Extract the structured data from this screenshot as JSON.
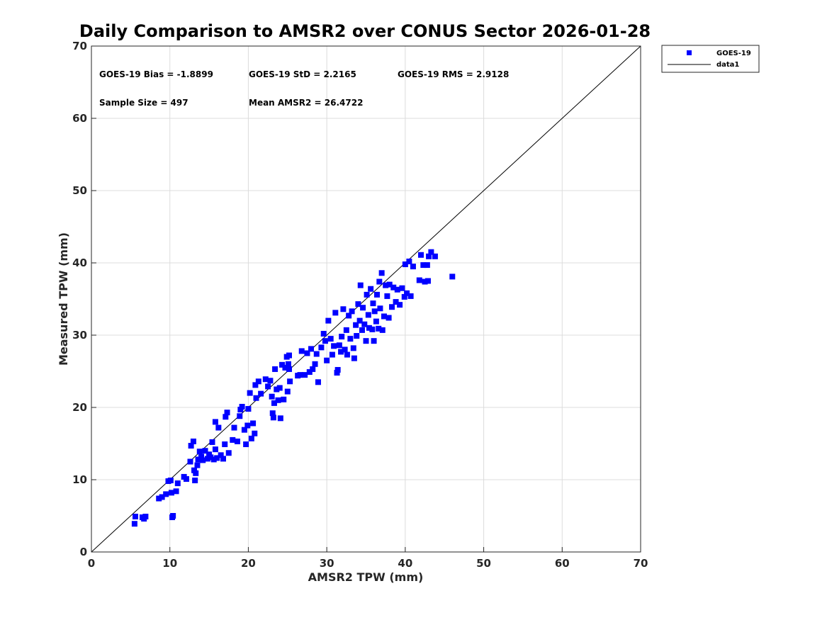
{
  "chart_data": {
    "type": "scatter",
    "title": "Daily Comparison to AMSR2 over CONUS Sector 2026-01-28",
    "xlabel": "AMSR2 TPW (mm)",
    "ylabel": "Measured TPW (mm)",
    "xlim": [
      0,
      70
    ],
    "ylim": [
      0,
      70
    ],
    "xticks": [
      "0",
      "10",
      "20",
      "30",
      "40",
      "50",
      "60",
      "70"
    ],
    "yticks": [
      "0",
      "10",
      "20",
      "30",
      "40",
      "50",
      "60",
      "70"
    ],
    "grid": true,
    "legend_position": "outside-top-right",
    "colors": {
      "marker": "#0000ff",
      "line": "#000000",
      "grid": "#dcdcdc"
    },
    "stats": {
      "bias": "GOES-19 Bias = -1.8899",
      "std": "GOES-19 StD = 2.2165",
      "rms": "GOES-19 RMS = 2.9128",
      "sample_size": "Sample Size = 497",
      "mean": "Mean AMSR2 = 26.4722"
    },
    "legend": [
      {
        "label": "GOES-19",
        "kind": "marker"
      },
      {
        "label": "data1",
        "kind": "line"
      }
    ],
    "reference_line": {
      "name": "data1",
      "x": [
        0,
        70
      ],
      "y": [
        0,
        70
      ]
    },
    "series": [
      {
        "name": "GOES-19",
        "points": [
          [
            5.5,
            3.9
          ],
          [
            5.6,
            4.9
          ],
          [
            6.5,
            4.8
          ],
          [
            6.9,
            4.9
          ],
          [
            6.7,
            4.6
          ],
          [
            8.6,
            7.4
          ],
          [
            9.0,
            7.6
          ],
          [
            9.5,
            8.0
          ],
          [
            9.8,
            9.8
          ],
          [
            10.1,
            9.9
          ],
          [
            10.2,
            8.2
          ],
          [
            10.8,
            8.4
          ],
          [
            10.3,
            4.8
          ],
          [
            10.4,
            5.0
          ],
          [
            11.0,
            9.5
          ],
          [
            11.8,
            10.4
          ],
          [
            12.1,
            10.1
          ],
          [
            12.6,
            12.5
          ],
          [
            12.7,
            14.7
          ],
          [
            13.0,
            15.3
          ],
          [
            13.1,
            11.3
          ],
          [
            13.2,
            9.9
          ],
          [
            13.3,
            10.9
          ],
          [
            13.5,
            12.0
          ],
          [
            13.6,
            12.8
          ],
          [
            13.8,
            13.9
          ],
          [
            14.0,
            13.2
          ],
          [
            14.2,
            12.7
          ],
          [
            14.5,
            14.0
          ],
          [
            14.8,
            12.9
          ],
          [
            15.0,
            13.5
          ],
          [
            15.2,
            13.1
          ],
          [
            15.4,
            15.2
          ],
          [
            15.6,
            12.8
          ],
          [
            15.8,
            14.2
          ],
          [
            16.0,
            13.0
          ],
          [
            15.8,
            18.0
          ],
          [
            16.2,
            17.2
          ],
          [
            16.5,
            13.4
          ],
          [
            16.8,
            12.9
          ],
          [
            17.0,
            14.9
          ],
          [
            17.1,
            18.7
          ],
          [
            17.3,
            19.3
          ],
          [
            17.5,
            13.7
          ],
          [
            18.0,
            15.5
          ],
          [
            18.2,
            17.2
          ],
          [
            18.6,
            15.3
          ],
          [
            18.9,
            18.8
          ],
          [
            19.0,
            19.7
          ],
          [
            19.2,
            20.1
          ],
          [
            19.5,
            16.9
          ],
          [
            19.7,
            14.9
          ],
          [
            19.9,
            17.5
          ],
          [
            20.0,
            19.8
          ],
          [
            20.2,
            22.0
          ],
          [
            20.4,
            15.7
          ],
          [
            20.6,
            17.8
          ],
          [
            20.8,
            16.4
          ],
          [
            20.9,
            23.1
          ],
          [
            21.0,
            21.3
          ],
          [
            21.3,
            23.6
          ],
          [
            21.6,
            21.9
          ],
          [
            22.2,
            23.9
          ],
          [
            22.5,
            22.9
          ],
          [
            22.8,
            23.7
          ],
          [
            23.0,
            21.5
          ],
          [
            23.1,
            19.2
          ],
          [
            23.2,
            18.6
          ],
          [
            23.3,
            20.6
          ],
          [
            23.4,
            25.3
          ],
          [
            23.6,
            22.5
          ],
          [
            23.8,
            21.0
          ],
          [
            24.0,
            22.7
          ],
          [
            24.1,
            18.5
          ],
          [
            24.3,
            25.9
          ],
          [
            24.5,
            21.1
          ],
          [
            24.7,
            25.5
          ],
          [
            24.9,
            27.0
          ],
          [
            25.1,
            26.0
          ],
          [
            25.2,
            25.3
          ],
          [
            25.3,
            23.6
          ],
          [
            25.0,
            22.2
          ],
          [
            25.2,
            27.2
          ],
          [
            26.3,
            24.4
          ],
          [
            26.6,
            24.5
          ],
          [
            26.8,
            27.8
          ],
          [
            27.2,
            24.5
          ],
          [
            27.5,
            27.5
          ],
          [
            27.8,
            24.9
          ],
          [
            28.0,
            28.1
          ],
          [
            28.2,
            25.3
          ],
          [
            28.5,
            26.0
          ],
          [
            28.7,
            27.4
          ],
          [
            28.9,
            23.5
          ],
          [
            29.3,
            28.3
          ],
          [
            29.6,
            30.2
          ],
          [
            29.8,
            29.2
          ],
          [
            30.0,
            26.5
          ],
          [
            30.2,
            32.0
          ],
          [
            30.5,
            29.5
          ],
          [
            30.7,
            27.3
          ],
          [
            30.9,
            28.5
          ],
          [
            31.1,
            33.1
          ],
          [
            31.3,
            24.8
          ],
          [
            31.4,
            25.2
          ],
          [
            31.6,
            28.6
          ],
          [
            31.8,
            27.7
          ],
          [
            31.9,
            29.8
          ],
          [
            32.1,
            33.6
          ],
          [
            32.3,
            28.0
          ],
          [
            32.5,
            30.7
          ],
          [
            32.6,
            27.3
          ],
          [
            32.8,
            32.7
          ],
          [
            33.0,
            29.5
          ],
          [
            33.2,
            33.3
          ],
          [
            33.4,
            28.2
          ],
          [
            33.5,
            26.8
          ],
          [
            33.7,
            31.4
          ],
          [
            33.8,
            29.9
          ],
          [
            34.0,
            34.3
          ],
          [
            34.2,
            32.0
          ],
          [
            34.3,
            36.9
          ],
          [
            34.5,
            30.7
          ],
          [
            34.6,
            33.8
          ],
          [
            34.8,
            31.5
          ],
          [
            35.0,
            29.2
          ],
          [
            35.1,
            35.6
          ],
          [
            35.3,
            32.8
          ],
          [
            35.4,
            31.0
          ],
          [
            35.6,
            36.4
          ],
          [
            35.8,
            30.8
          ],
          [
            35.9,
            34.4
          ],
          [
            36.0,
            29.2
          ],
          [
            36.1,
            33.3
          ],
          [
            36.3,
            31.9
          ],
          [
            36.4,
            35.6
          ],
          [
            36.6,
            30.9
          ],
          [
            36.7,
            37.4
          ],
          [
            36.8,
            33.7
          ],
          [
            37.0,
            38.6
          ],
          [
            37.1,
            30.7
          ],
          [
            37.3,
            32.6
          ],
          [
            37.5,
            36.9
          ],
          [
            37.7,
            35.4
          ],
          [
            37.9,
            32.4
          ],
          [
            38.0,
            37.0
          ],
          [
            38.3,
            33.9
          ],
          [
            38.5,
            36.6
          ],
          [
            38.8,
            34.6
          ],
          [
            39.0,
            36.3
          ],
          [
            39.3,
            34.2
          ],
          [
            39.6,
            36.5
          ],
          [
            39.9,
            35.3
          ],
          [
            40.0,
            39.8
          ],
          [
            40.2,
            35.8
          ],
          [
            40.5,
            40.2
          ],
          [
            40.7,
            35.4
          ],
          [
            41.0,
            39.5
          ],
          [
            41.8,
            37.6
          ],
          [
            42.0,
            41.1
          ],
          [
            42.3,
            39.7
          ],
          [
            42.5,
            37.4
          ],
          [
            42.8,
            39.7
          ],
          [
            42.9,
            37.5
          ],
          [
            43.0,
            40.9
          ],
          [
            43.3,
            41.5
          ],
          [
            43.8,
            40.9
          ],
          [
            46.0,
            38.1
          ]
        ]
      }
    ]
  }
}
